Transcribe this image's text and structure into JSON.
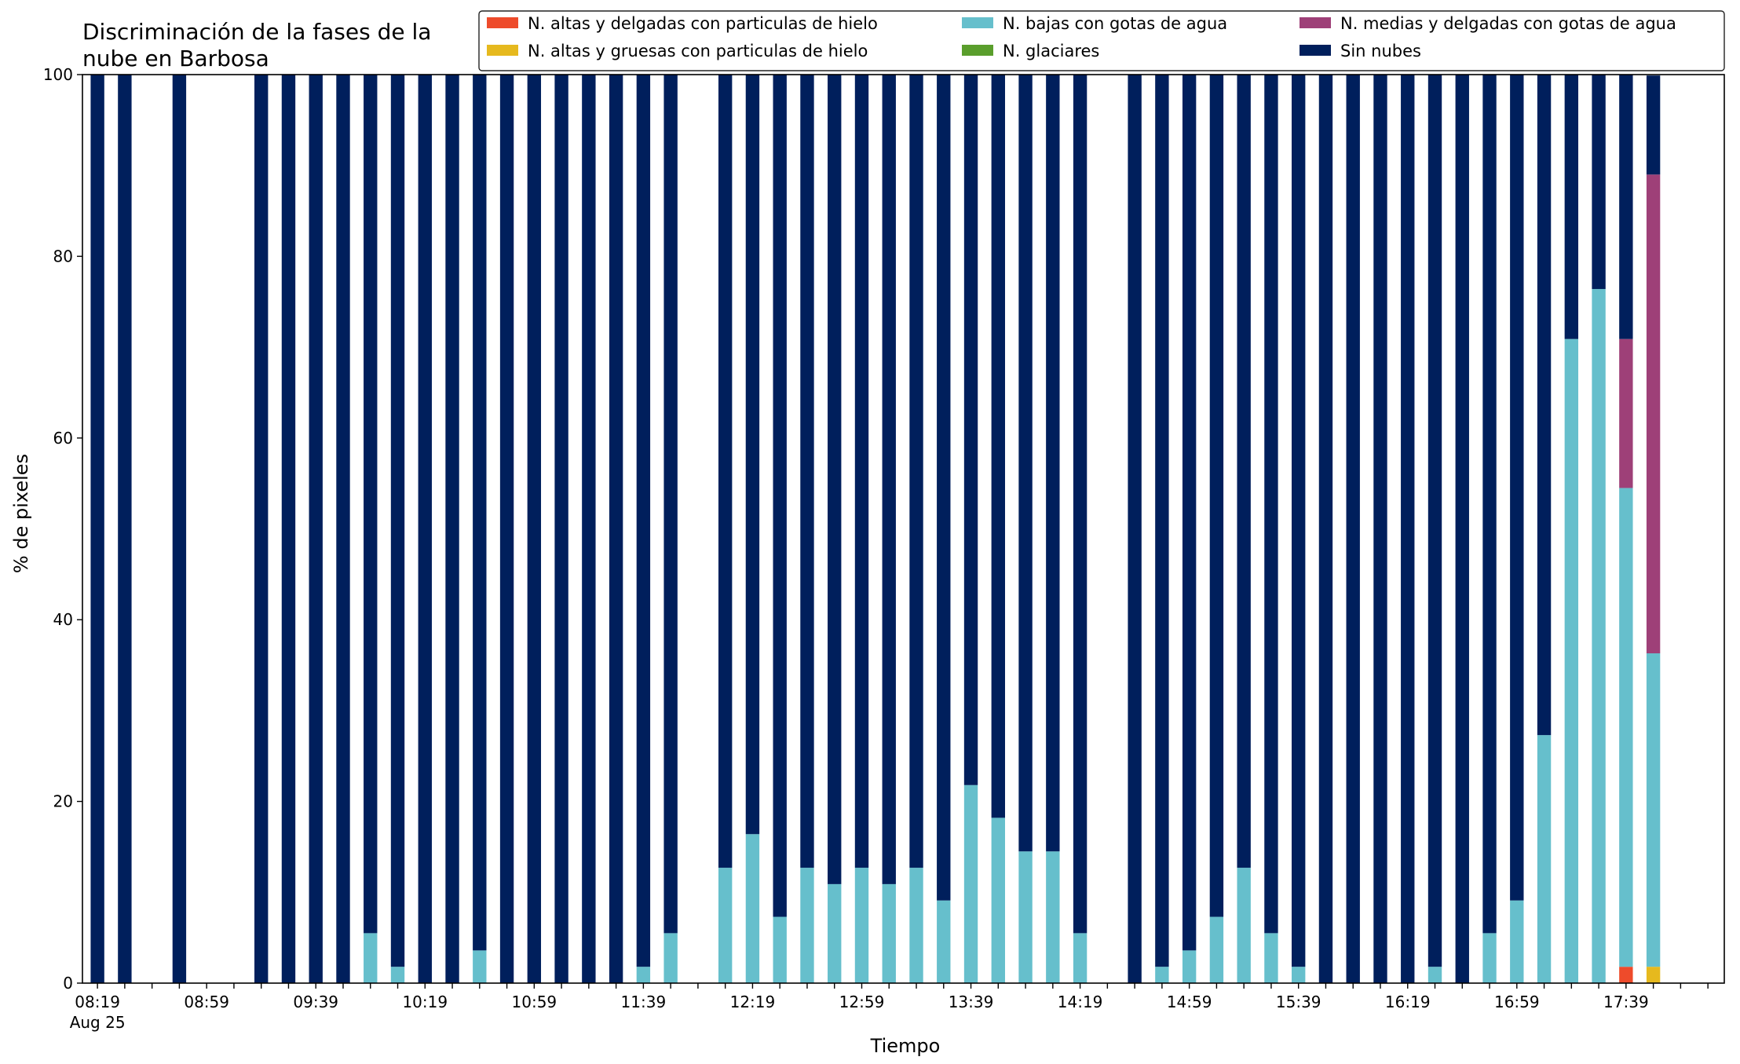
{
  "chart_data": {
    "type": "bar",
    "stacked": true,
    "title_lines": [
      "Discriminación de la fases de la",
      "nube en Barbosa"
    ],
    "xlabel": "Tiempo",
    "ylabel": "% de pixeles",
    "ylim": [
      0,
      100
    ],
    "yticks": [
      0,
      20,
      40,
      60,
      80,
      100
    ],
    "x_time_range": [
      "08:19",
      "17:49"
    ],
    "x_tick_labels": [
      "08:19",
      "08:59",
      "09:39",
      "10:19",
      "10:59",
      "11:39",
      "12:19",
      "12:59",
      "13:39",
      "14:19",
      "14:59",
      "15:39",
      "16:19",
      "16:59",
      "17:39"
    ],
    "x_first_tick_date": "Aug 25",
    "x_minor_tick_interval_minutes": 10,
    "grid": false,
    "legend_position": "top-right",
    "legend": [
      {
        "name": "N. altas y delgadas con particulas de hielo",
        "color": "#ee4b2b"
      },
      {
        "name": "N. altas y gruesas con particulas de hielo",
        "color": "#e6b91e"
      },
      {
        "name": "N. bajas con gotas de agua",
        "color": "#66bfcc"
      },
      {
        "name": "N. glaciares",
        "color": "#5a9e2c"
      },
      {
        "name": "N. medias y delgadas con gotas de agua",
        "color": "#9e4078"
      },
      {
        "name": "Sin nubes",
        "color": "#001f5c"
      }
    ],
    "stack_order": [
      "N. altas y delgadas con particulas de hielo",
      "N. altas y gruesas con particulas de hielo",
      "N. bajas con gotas de agua",
      "N. glaciares",
      "N. medias y delgadas con gotas de agua",
      "Sin nubes"
    ],
    "bars": [
      {
        "time": "08:19",
        "values": [
          0,
          0,
          0,
          0,
          0,
          100
        ]
      },
      {
        "time": "08:29",
        "values": [
          0,
          0,
          0,
          0,
          0,
          100
        ]
      },
      {
        "time": "08:49",
        "values": [
          0,
          0,
          0,
          0,
          0,
          100
        ]
      },
      {
        "time": "09:19",
        "values": [
          0,
          0,
          0,
          0,
          0,
          100
        ]
      },
      {
        "time": "09:29",
        "values": [
          0,
          0,
          0,
          0,
          0,
          100
        ]
      },
      {
        "time": "09:39",
        "values": [
          0,
          0,
          0,
          0,
          0,
          100
        ]
      },
      {
        "time": "09:49",
        "values": [
          0,
          0,
          0,
          0,
          0,
          100
        ]
      },
      {
        "time": "09:59",
        "values": [
          0,
          0,
          5.5,
          0,
          0,
          94.5
        ]
      },
      {
        "time": "10:09",
        "values": [
          0,
          0,
          1.8,
          0,
          0,
          98.2
        ]
      },
      {
        "time": "10:19",
        "values": [
          0,
          0,
          0,
          0,
          0,
          100
        ]
      },
      {
        "time": "10:29",
        "values": [
          0,
          0,
          0,
          0,
          0,
          100
        ]
      },
      {
        "time": "10:39",
        "values": [
          0,
          0,
          3.6,
          0,
          0,
          96.4
        ]
      },
      {
        "time": "10:49",
        "values": [
          0,
          0,
          0,
          0,
          0,
          100
        ]
      },
      {
        "time": "10:59",
        "values": [
          0,
          0,
          0,
          0,
          0,
          100
        ]
      },
      {
        "time": "11:09",
        "values": [
          0,
          0,
          0,
          0,
          0,
          100
        ]
      },
      {
        "time": "11:19",
        "values": [
          0,
          0,
          0,
          0,
          0,
          100
        ]
      },
      {
        "time": "11:29",
        "values": [
          0,
          0,
          0,
          0,
          0,
          100
        ]
      },
      {
        "time": "11:39",
        "values": [
          0,
          0,
          1.8,
          0,
          0,
          98.2
        ]
      },
      {
        "time": "11:49",
        "values": [
          0,
          0,
          5.5,
          0,
          0,
          94.5
        ]
      },
      {
        "time": "12:09",
        "values": [
          0,
          0,
          12.7,
          0,
          0,
          87.3
        ]
      },
      {
        "time": "12:19",
        "values": [
          0,
          0,
          16.4,
          0,
          0,
          83.6
        ]
      },
      {
        "time": "12:29",
        "values": [
          0,
          0,
          7.3,
          0,
          0,
          92.7
        ]
      },
      {
        "time": "12:39",
        "values": [
          0,
          0,
          12.7,
          0,
          0,
          87.3
        ]
      },
      {
        "time": "12:49",
        "values": [
          0,
          0,
          10.9,
          0,
          0,
          89.1
        ]
      },
      {
        "time": "12:59",
        "values": [
          0,
          0,
          12.7,
          0,
          0,
          87.3
        ]
      },
      {
        "time": "13:09",
        "values": [
          0,
          0,
          10.9,
          0,
          0,
          89.1
        ]
      },
      {
        "time": "13:19",
        "values": [
          0,
          0,
          12.7,
          0,
          0,
          87.3
        ]
      },
      {
        "time": "13:29",
        "values": [
          0,
          0,
          9.1,
          0,
          0,
          90.9
        ]
      },
      {
        "time": "13:39",
        "values": [
          0,
          0,
          21.8,
          0,
          0,
          78.2
        ]
      },
      {
        "time": "13:49",
        "values": [
          0,
          0,
          18.2,
          0,
          0,
          81.8
        ]
      },
      {
        "time": "13:59",
        "values": [
          0,
          0,
          14.5,
          0,
          0,
          85.5
        ]
      },
      {
        "time": "14:09",
        "values": [
          0,
          0,
          14.5,
          0,
          0,
          85.5
        ]
      },
      {
        "time": "14:19",
        "values": [
          0,
          0,
          5.5,
          0,
          0,
          94.5
        ]
      },
      {
        "time": "14:39",
        "values": [
          0,
          0,
          0,
          0,
          0,
          100
        ]
      },
      {
        "time": "14:49",
        "values": [
          0,
          0,
          1.8,
          0,
          0,
          98.2
        ]
      },
      {
        "time": "14:59",
        "values": [
          0,
          0,
          3.6,
          0,
          0,
          96.4
        ]
      },
      {
        "time": "15:09",
        "values": [
          0,
          0,
          7.3,
          0,
          0,
          92.7
        ]
      },
      {
        "time": "15:19",
        "values": [
          0,
          0,
          12.7,
          0,
          0,
          87.3
        ]
      },
      {
        "time": "15:29",
        "values": [
          0,
          0,
          5.5,
          0,
          0,
          94.5
        ]
      },
      {
        "time": "15:39",
        "values": [
          0,
          0,
          1.8,
          0,
          0,
          98.2
        ]
      },
      {
        "time": "15:49",
        "values": [
          0,
          0,
          0,
          0,
          0,
          100
        ]
      },
      {
        "time": "15:59",
        "values": [
          0,
          0,
          0,
          0,
          0,
          100
        ]
      },
      {
        "time": "16:09",
        "values": [
          0,
          0,
          0,
          0,
          0,
          100
        ]
      },
      {
        "time": "16:19",
        "values": [
          0,
          0,
          0,
          0,
          0,
          100
        ]
      },
      {
        "time": "16:29",
        "values": [
          0,
          0,
          1.8,
          0,
          0,
          98.2
        ]
      },
      {
        "time": "16:39",
        "values": [
          0,
          0,
          0,
          0,
          0,
          100
        ]
      },
      {
        "time": "16:49",
        "values": [
          0,
          0,
          5.5,
          0,
          0,
          94.5
        ]
      },
      {
        "time": "16:59",
        "values": [
          0,
          0,
          9.1,
          0,
          0,
          90.9
        ]
      },
      {
        "time": "17:09",
        "values": [
          0,
          0,
          27.3,
          0,
          0,
          72.7
        ]
      },
      {
        "time": "17:19",
        "values": [
          0,
          0,
          70.9,
          0,
          0,
          29.1
        ]
      },
      {
        "time": "17:29",
        "values": [
          0,
          0,
          76.4,
          0,
          0,
          23.6
        ]
      },
      {
        "time": "17:39",
        "values": [
          1.8,
          0,
          52.7,
          0,
          16.4,
          29.1
        ]
      },
      {
        "time": "17:49",
        "values": [
          0,
          1.8,
          34.5,
          0,
          52.7,
          10.9
        ]
      }
    ]
  }
}
